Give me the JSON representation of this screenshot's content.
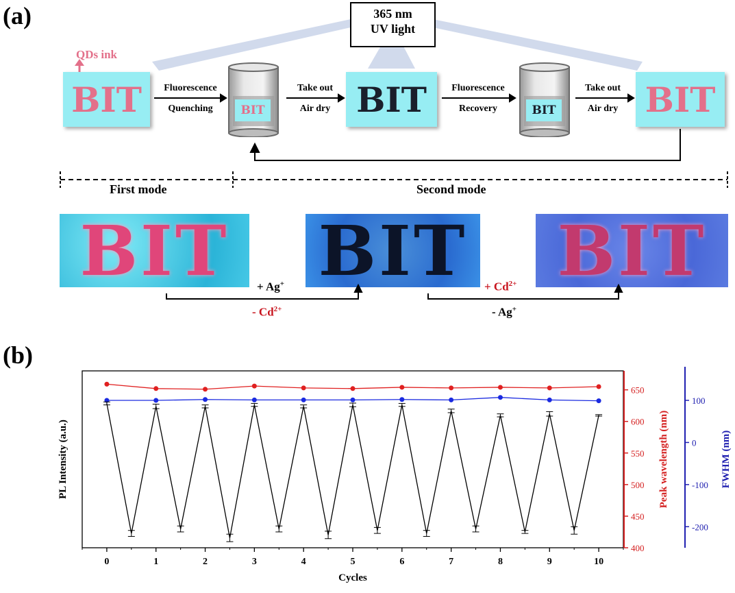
{
  "panel_a": {
    "label": "(a)",
    "uv_box": {
      "line1": "365 nm",
      "line2": "UV light"
    },
    "qds_ink": "QDs ink",
    "bit_text": "BIT",
    "steps": {
      "s1_top": "Fluorescence",
      "s1_bottom": "Quenching",
      "s2_top": "Take out",
      "s2_bottom": "Air dry",
      "s3_top": "Fluorescence",
      "s3_bottom": "Recovery",
      "s4_top": "Take out",
      "s4_bottom": "Air dry"
    },
    "modes": {
      "first": "First mode",
      "second": "Second mode"
    },
    "ions": {
      "add_ag": "+ Ag",
      "add_ag_sup": "+",
      "remove_cd": "- Cd",
      "remove_cd_sup": "2+",
      "add_cd": "+ Cd",
      "add_cd_sup": "2+",
      "remove_ag": "- Ag",
      "remove_ag_sup": "+"
    },
    "colors": {
      "cyan_box": "#97edf3",
      "pink": "#e3708a",
      "dark": "#1a1f2b",
      "red_text": "#c8141e"
    }
  },
  "panel_b": {
    "label": "(b)",
    "chart_data": {
      "type": "line",
      "xlabel": "Cycles",
      "x_ticks": [
        0,
        1,
        2,
        3,
        4,
        5,
        6,
        7,
        8,
        9,
        10
      ],
      "xlim": [
        -0.5,
        10.5
      ],
      "axes": {
        "left": {
          "label": "PL Intensity (a.u.)",
          "ticks_shown": false
        },
        "right1": {
          "label": "Peak wavelength (nm)",
          "ticks": [
            400,
            450,
            500,
            550,
            600,
            650
          ],
          "ylim": [
            400,
            680
          ],
          "color": "#d42020"
        },
        "right2": {
          "label": "FWHM (nm)",
          "ticks": [
            -200,
            -100,
            0,
            100
          ],
          "ylim": [
            -250,
            170
          ],
          "color": "#2020b0"
        }
      },
      "series": [
        {
          "name": "",
          "axis": "right1",
          "color": "#e02020",
          "x": [
            0,
            1,
            2,
            3,
            4,
            5,
            6,
            7,
            8,
            9,
            10
          ],
          "y": [
            659,
            652,
            651,
            656,
            653,
            652,
            654,
            653,
            654,
            653,
            655
          ]
        },
        {
          "name": "",
          "axis": "right2",
          "color": "#1a2ae0",
          "x": [
            0,
            1,
            2,
            3,
            4,
            5,
            6,
            7,
            8,
            9,
            10
          ],
          "y": [
            100,
            100,
            102,
            101,
            101,
            101,
            102,
            101,
            107,
            101,
            99
          ]
        },
        {
          "name": "",
          "axis": "left",
          "color": "#000000",
          "x": [
            0,
            0.5,
            1,
            1.5,
            2,
            2.5,
            3,
            3.5,
            4,
            4.5,
            5,
            5.5,
            6,
            6.5,
            7,
            7.5,
            8,
            8.5,
            9,
            9.5,
            10
          ],
          "y": [
            0.92,
            0.05,
            0.9,
            0.08,
            0.9,
            0.02,
            0.91,
            0.08,
            0.9,
            0.04,
            0.91,
            0.07,
            0.91,
            0.05,
            0.87,
            0.08,
            0.84,
            0.06,
            0.85,
            0.07,
            0.84
          ],
          "err": [
            0.01,
            0.02,
            0.015,
            0.02,
            0.01,
            0.025,
            0.01,
            0.02,
            0.01,
            0.025,
            0.012,
            0.02,
            0.01,
            0.02,
            0.012,
            0.02,
            0.01,
            0.01,
            0.015,
            0.025,
            0.005
          ]
        }
      ]
    }
  }
}
